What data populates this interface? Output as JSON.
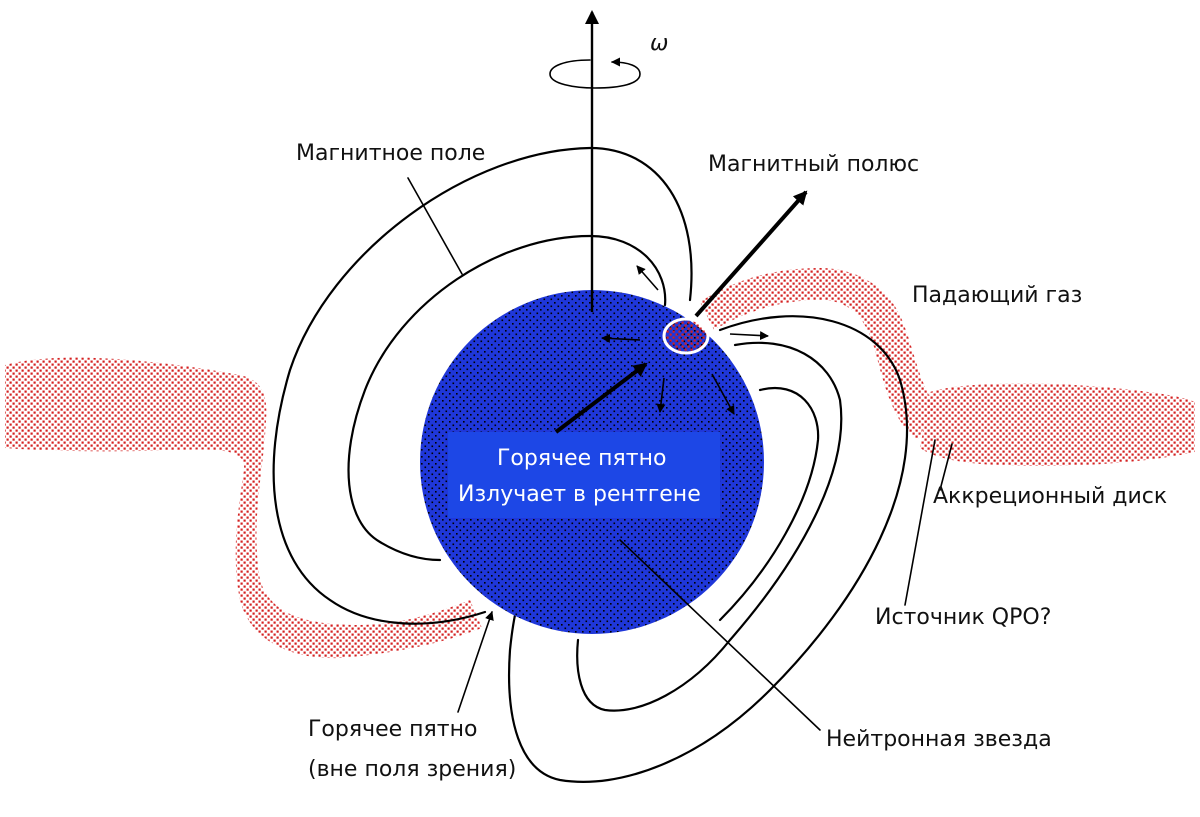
{
  "labels": {
    "omega": "ω",
    "magnetic_field": "Магнитное поле",
    "magnetic_pole": "Магнитный полюс",
    "infalling_gas": "Падающий газ",
    "accretion_disk": "Аккреционный диск",
    "qpo_source": "Источник QPO?",
    "neutron_star": "Нейтронная звезда",
    "hot_spot_hidden_line1": "Горячее пятно",
    "hot_spot_hidden_line2": "(вне поля зрения)",
    "hot_spot_line1": "Горячее пятно",
    "hot_spot_line2": "Излучает в рентгене"
  },
  "colors": {
    "star": "#1f37d9",
    "gas": "#d42020",
    "label_band": "#1d47e6",
    "line": "#000000"
  }
}
